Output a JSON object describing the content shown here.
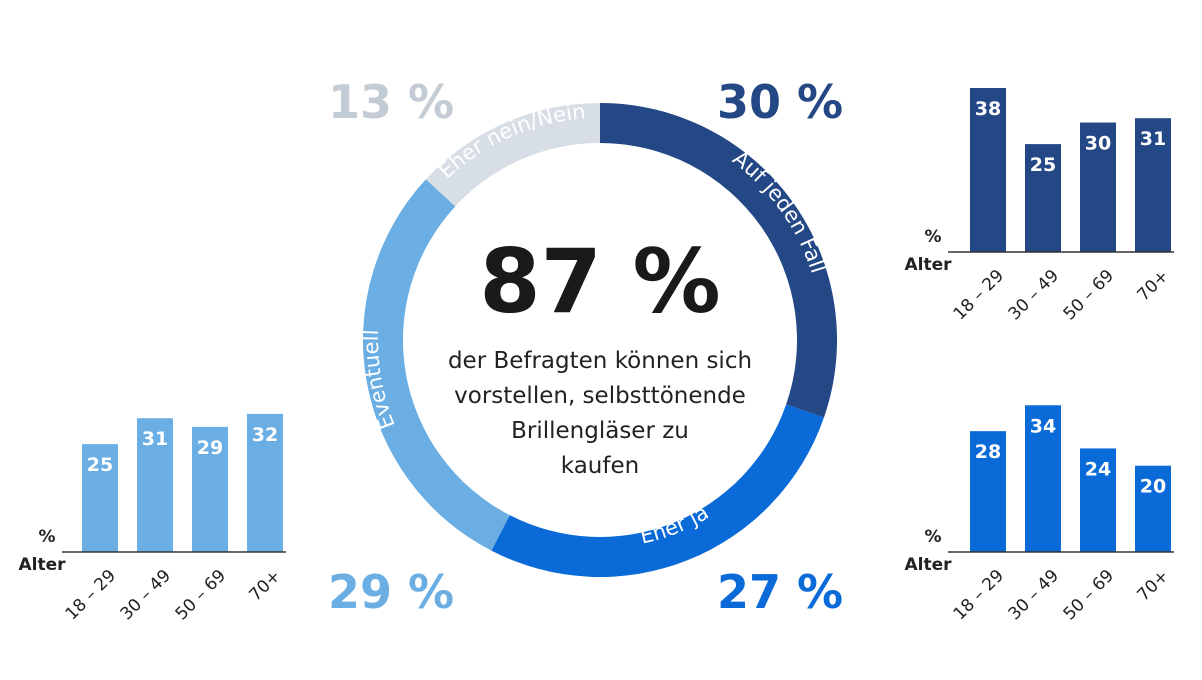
{
  "chart_data": [
    {
      "type": "pie",
      "style": "donut",
      "center_value": "87 %",
      "center_text": [
        "der Befragten können sich",
        "vorstellen, selbsttönende",
        "Brillengläser zu",
        "kaufen"
      ],
      "slices": [
        {
          "label": "Auf jeden Fall",
          "value": 30,
          "display": "30 %",
          "color": "#244785",
          "label_color": "#244785"
        },
        {
          "label": "Eher ja",
          "value": 27,
          "display": "27 %",
          "color": "#0a6ad8",
          "label_color": "#0a6ad8"
        },
        {
          "label": "Eventuell",
          "value": 29,
          "display": "29 %",
          "color": "#6aaee3",
          "label_color": "#6aaee3"
        },
        {
          "label": "Eher nein/Nein",
          "value": 13,
          "display": "13 %",
          "color": "#d8dee5",
          "label_color": "#c3cbd4"
        }
      ]
    },
    {
      "type": "bar",
      "series_ref": "Auf jeden Fall",
      "categories": [
        "18 – 29",
        "30 – 49",
        "50 – 69",
        "70+"
      ],
      "values": [
        38,
        25,
        30,
        31
      ],
      "ylabel": "%",
      "xlabel": "Alter",
      "color": "#244785",
      "ylim": [
        0,
        40
      ]
    },
    {
      "type": "bar",
      "series_ref": "Eher ja",
      "categories": [
        "18 – 29",
        "30 – 49",
        "50 – 69",
        "70+"
      ],
      "values": [
        28,
        34,
        24,
        20
      ],
      "ylabel": "%",
      "xlabel": "Alter",
      "color": "#0a6ad8",
      "ylim": [
        0,
        40
      ]
    },
    {
      "type": "bar",
      "series_ref": "Eventuell",
      "categories": [
        "18 – 29",
        "30 – 49",
        "50 – 69",
        "70+"
      ],
      "values": [
        25,
        31,
        29,
        32
      ],
      "ylabel": "%",
      "xlabel": "Alter",
      "color": "#6aaee3",
      "ylim": [
        0,
        40
      ]
    }
  ]
}
